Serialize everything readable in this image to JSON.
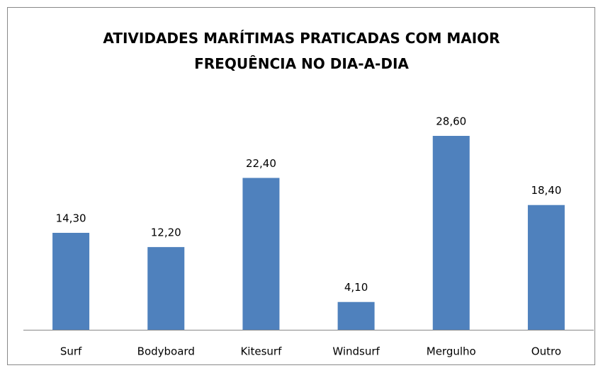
{
  "chart_data": {
    "type": "bar",
    "title": "ATIVIDADES MARÍTIMAS PRATICADAS COM MAIOR FREQUÊNCIA NO DIA-A-DIA",
    "categories": [
      "Surf",
      "Bodyboard",
      "Kitesurf",
      "Windsurf",
      "Mergulho",
      "Outro"
    ],
    "values": [
      14.3,
      12.2,
      22.4,
      4.1,
      28.6,
      18.4
    ],
    "value_labels": [
      "14,30",
      "12,20",
      "22,40",
      "4,10",
      "28,60",
      "18,40"
    ],
    "color": "#4f81bd"
  }
}
